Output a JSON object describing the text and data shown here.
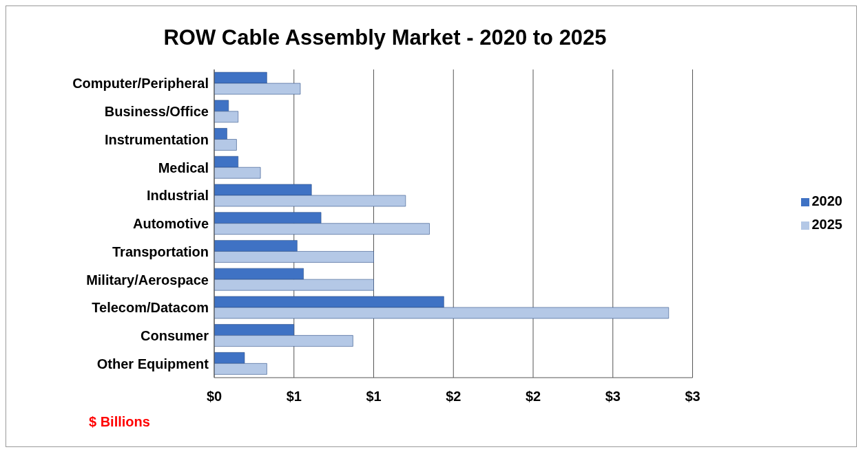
{
  "chart_data": {
    "type": "bar",
    "orientation": "horizontal",
    "title": "ROW Cable Assembly Market - 2020 to 2025",
    "xlabel": "$ Billions",
    "categories": [
      "Computer/Peripheral",
      "Business/Office ",
      "Instrumentation",
      "Medical",
      "Industrial",
      "Automotive",
      "Transportation",
      "Military/Aerospace",
      "Telecom/Datacom",
      "Consumer",
      "Other Equipment"
    ],
    "series": [
      {
        "name": "2020",
        "color": "#3f72c4",
        "values": [
          0.33,
          0.09,
          0.08,
          0.15,
          0.61,
          0.67,
          0.52,
          0.56,
          1.44,
          0.5,
          0.19
        ]
      },
      {
        "name": "2025",
        "color": "#b4c8e6",
        "values": [
          0.54,
          0.15,
          0.14,
          0.29,
          1.2,
          1.35,
          1.0,
          1.0,
          2.85,
          0.87,
          0.33
        ]
      }
    ],
    "xlim": [
      0,
      3
    ],
    "xticks": [
      {
        "value": 0,
        "label": "$0"
      },
      {
        "value": 0.5,
        "label": "$1"
      },
      {
        "value": 1,
        "label": "$1"
      },
      {
        "value": 1.5,
        "label": "$2"
      },
      {
        "value": 2,
        "label": "$2"
      },
      {
        "value": 2.5,
        "label": "$3"
      },
      {
        "value": 3,
        "label": "$3"
      }
    ],
    "grid": "x",
    "legend": "right"
  }
}
